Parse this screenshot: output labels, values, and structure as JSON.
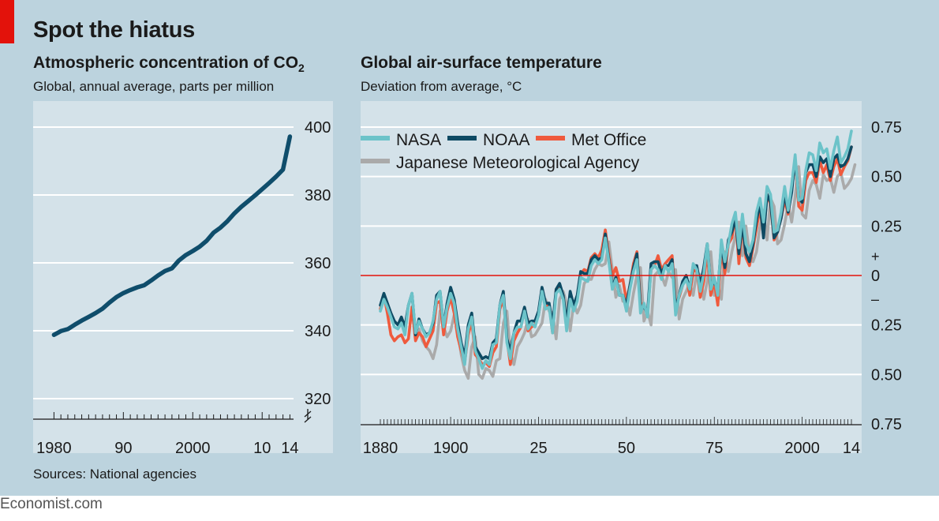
{
  "headline": "Spot the hiatus",
  "source": "Sources: National agencies",
  "brand": "Economist.com",
  "colors": {
    "accent_red": "#e3120b",
    "frame": "#bcd3de",
    "panel": "#d4e2e9",
    "co2_line": "#0f4d6b",
    "nasa": "#6cc3c9",
    "noaa": "#0d4a63",
    "met_office": "#ef5a3d",
    "jma": "#aaaaaa",
    "zero_line": "#e3120b"
  },
  "chart_data": [
    {
      "type": "line",
      "title": "Atmospheric concentration of CO",
      "title_subscript": "2",
      "subtitle": "Global, annual average, parts per million",
      "x_tick_labels": [
        "1980",
        "90",
        "2000",
        "10",
        "14"
      ],
      "x_tick_values": [
        1980,
        1990,
        2000,
        2010,
        2014
      ],
      "y_tick_labels": [
        "400",
        "380",
        "360",
        "340",
        "320"
      ],
      "y_tick_values": [
        400,
        380,
        360,
        340,
        320
      ],
      "xlim": [
        1977,
        2016
      ],
      "ylim": [
        312,
        402
      ],
      "axis_break": true,
      "grid": true,
      "series": [
        {
          "x": [
            1980,
            1981,
            1982,
            1983,
            1984,
            1985,
            1986,
            1987,
            1988,
            1989,
            1990,
            1991,
            1992,
            1993,
            1994,
            1995,
            1996,
            1997,
            1998,
            1999,
            2000,
            2001,
            2002,
            2003,
            2004,
            2005,
            2006,
            2007,
            2008,
            2009,
            2010,
            2011,
            2012,
            2013,
            2014
          ],
          "values": [
            338.8,
            339.9,
            340.5,
            341.8,
            343.0,
            344.1,
            345.2,
            346.5,
            348.3,
            349.9,
            351.1,
            352.0,
            352.8,
            353.4,
            354.8,
            356.3,
            357.6,
            358.4,
            360.7,
            362.3,
            363.5,
            364.8,
            366.5,
            368.9,
            370.4,
            372.3,
            374.6,
            376.5,
            378.2,
            379.9,
            381.7,
            383.5,
            385.4,
            387.5,
            397.2
          ]
        }
      ]
    },
    {
      "type": "line",
      "title": "Global air-surface temperature",
      "subtitle": "Deviation from average, °C",
      "x_tick_labels": [
        "1880",
        "1900",
        "25",
        "50",
        "75",
        "2000",
        "14"
      ],
      "x_tick_values": [
        1880,
        1900,
        1925,
        1950,
        1975,
        2000,
        2014
      ],
      "y_tick_labels": [
        "0.75",
        "0.50",
        "0.25",
        "0",
        "0.25",
        "0.50",
        "0.75"
      ],
      "y_tick_values": [
        0.75,
        0.5,
        0.25,
        0,
        -0.25,
        -0.5,
        -0.75
      ],
      "y_sign_labels": [
        "+",
        "–"
      ],
      "xlim": [
        1875,
        2018
      ],
      "ylim": [
        -0.75,
        0.75
      ],
      "grid": true,
      "legend": "top-left",
      "series": [
        {
          "name": "NASA",
          "x_start": 1880,
          "values": [
            -0.18,
            -0.12,
            -0.16,
            -0.21,
            -0.26,
            -0.27,
            -0.24,
            -0.3,
            -0.15,
            -0.09,
            -0.29,
            -0.23,
            -0.27,
            -0.31,
            -0.29,
            -0.23,
            -0.12,
            -0.08,
            -0.26,
            -0.16,
            -0.09,
            -0.14,
            -0.27,
            -0.36,
            -0.45,
            -0.27,
            -0.21,
            -0.38,
            -0.42,
            -0.47,
            -0.43,
            -0.45,
            -0.35,
            -0.34,
            -0.15,
            -0.1,
            -0.34,
            -0.42,
            -0.29,
            -0.26,
            -0.26,
            -0.18,
            -0.27,
            -0.24,
            -0.26,
            -0.2,
            -0.08,
            -0.17,
            -0.16,
            -0.29,
            -0.09,
            -0.07,
            -0.12,
            -0.28,
            -0.12,
            -0.18,
            -0.13,
            -0.01,
            -0.02,
            -0.03,
            0.05,
            0.08,
            0.06,
            0.08,
            0.19,
            0.07,
            -0.07,
            -0.02,
            -0.1,
            -0.1,
            -0.18,
            -0.07,
            0.02,
            0.08,
            -0.19,
            -0.14,
            -0.21,
            0.03,
            0.05,
            0.03,
            -0.02,
            0.05,
            0.02,
            0.06,
            -0.2,
            -0.1,
            -0.05,
            -0.02,
            -0.07,
            0.06,
            0.03,
            -0.08,
            0.01,
            0.16,
            -0.07,
            -0.01,
            -0.1,
            0.18,
            0.07,
            0.16,
            0.26,
            0.32,
            0.14,
            0.31,
            0.16,
            0.12,
            0.18,
            0.32,
            0.39,
            0.27,
            0.45,
            0.41,
            0.22,
            0.23,
            0.32,
            0.45,
            0.33,
            0.46,
            0.61,
            0.38,
            0.39,
            0.53,
            0.62,
            0.61,
            0.53,
            0.67,
            0.62,
            0.64,
            0.54,
            0.63,
            0.7,
            0.57,
            0.6,
            0.64,
            0.73
          ]
        },
        {
          "name": "NOAA",
          "x_start": 1880,
          "values": [
            -0.15,
            -0.09,
            -0.14,
            -0.19,
            -0.23,
            -0.25,
            -0.21,
            -0.26,
            -0.15,
            -0.09,
            -0.3,
            -0.22,
            -0.27,
            -0.3,
            -0.29,
            -0.24,
            -0.1,
            -0.08,
            -0.26,
            -0.14,
            -0.06,
            -0.12,
            -0.24,
            -0.34,
            -0.41,
            -0.25,
            -0.19,
            -0.36,
            -0.39,
            -0.42,
            -0.41,
            -0.42,
            -0.34,
            -0.32,
            -0.15,
            -0.08,
            -0.32,
            -0.38,
            -0.29,
            -0.23,
            -0.23,
            -0.16,
            -0.24,
            -0.23,
            -0.23,
            -0.18,
            -0.06,
            -0.14,
            -0.14,
            -0.25,
            -0.07,
            -0.04,
            -0.1,
            -0.24,
            -0.08,
            -0.15,
            -0.1,
            0.02,
            0.01,
            0.01,
            0.08,
            0.1,
            0.08,
            0.09,
            0.21,
            0.08,
            -0.06,
            -0.01,
            -0.1,
            -0.1,
            -0.15,
            -0.05,
            0.04,
            0.11,
            -0.16,
            -0.16,
            -0.19,
            0.06,
            0.07,
            0.07,
            0.01,
            0.05,
            0.05,
            0.08,
            -0.17,
            -0.1,
            -0.03,
            0.0,
            -0.07,
            0.05,
            0.05,
            -0.05,
            0.04,
            0.16,
            -0.06,
            -0.03,
            -0.08,
            0.16,
            0.04,
            0.18,
            0.22,
            0.29,
            0.11,
            0.26,
            0.11,
            0.07,
            0.16,
            0.28,
            0.37,
            0.19,
            0.41,
            0.37,
            0.19,
            0.22,
            0.29,
            0.41,
            0.32,
            0.42,
            0.59,
            0.39,
            0.37,
            0.52,
            0.56,
            0.56,
            0.5,
            0.6,
            0.57,
            0.59,
            0.5,
            0.59,
            0.61,
            0.55,
            0.56,
            0.59,
            0.65
          ]
        },
        {
          "name": "Met Office",
          "x_start": 1880,
          "values": [
            -0.17,
            -0.1,
            -0.19,
            -0.3,
            -0.33,
            -0.31,
            -0.3,
            -0.34,
            -0.32,
            -0.16,
            -0.33,
            -0.29,
            -0.31,
            -0.36,
            -0.32,
            -0.28,
            -0.14,
            -0.13,
            -0.3,
            -0.18,
            -0.11,
            -0.19,
            -0.31,
            -0.38,
            -0.44,
            -0.3,
            -0.23,
            -0.4,
            -0.42,
            -0.45,
            -0.44,
            -0.46,
            -0.39,
            -0.36,
            -0.17,
            -0.12,
            -0.32,
            -0.45,
            -0.33,
            -0.29,
            -0.26,
            -0.17,
            -0.28,
            -0.26,
            -0.25,
            -0.2,
            -0.08,
            -0.16,
            -0.15,
            -0.29,
            -0.07,
            -0.05,
            -0.11,
            -0.24,
            -0.12,
            -0.17,
            -0.11,
            0.01,
            0.03,
            0.02,
            0.09,
            0.11,
            0.09,
            0.13,
            0.23,
            0.1,
            0.0,
            0.04,
            -0.03,
            -0.02,
            -0.13,
            -0.05,
            0.06,
            0.12,
            -0.14,
            -0.15,
            -0.2,
            0.03,
            0.05,
            0.1,
            0.03,
            0.06,
            0.08,
            0.1,
            -0.15,
            -0.11,
            -0.05,
            0.0,
            -0.1,
            0.02,
            0.03,
            -0.11,
            -0.03,
            0.12,
            -0.1,
            -0.03,
            -0.15,
            0.13,
            0.01,
            0.16,
            0.19,
            0.3,
            0.06,
            0.26,
            0.09,
            0.05,
            0.14,
            0.24,
            0.34,
            0.2,
            0.41,
            0.36,
            0.18,
            0.22,
            0.29,
            0.38,
            0.31,
            0.44,
            0.59,
            0.35,
            0.33,
            0.48,
            0.52,
            0.52,
            0.47,
            0.58,
            0.52,
            0.56,
            0.48,
            0.55,
            0.59,
            0.51,
            0.55,
            0.58,
            0.65
          ]
        },
        {
          "name": "Japanese Meteorological Agency",
          "x_start": 1891,
          "values": [
            -0.27,
            -0.33,
            -0.36,
            -0.38,
            -0.42,
            -0.35,
            -0.18,
            -0.26,
            -0.31,
            -0.28,
            -0.2,
            -0.28,
            -0.4,
            -0.48,
            -0.52,
            -0.36,
            -0.31,
            -0.5,
            -0.52,
            -0.47,
            -0.48,
            -0.51,
            -0.43,
            -0.42,
            -0.24,
            -0.18,
            -0.39,
            -0.45,
            -0.36,
            -0.33,
            -0.29,
            -0.22,
            -0.31,
            -0.3,
            -0.27,
            -0.24,
            -0.12,
            -0.18,
            -0.19,
            -0.32,
            -0.12,
            -0.08,
            -0.14,
            -0.28,
            -0.14,
            -0.19,
            -0.15,
            -0.04,
            -0.02,
            -0.02,
            0.03,
            0.06,
            0.05,
            0.06,
            0.17,
            0.03,
            -0.11,
            -0.05,
            -0.13,
            -0.13,
            -0.2,
            -0.09,
            0.0,
            0.04,
            -0.23,
            -0.18,
            -0.25,
            0.0,
            0.02,
            0.0,
            -0.05,
            0.02,
            -0.01,
            0.03,
            -0.22,
            -0.12,
            -0.08,
            -0.04,
            -0.1,
            0.02,
            0.0,
            -0.12,
            -0.03,
            0.12,
            -0.1,
            -0.05,
            -0.12,
            0.12,
            0.02,
            0.12,
            0.2,
            0.27,
            0.1,
            0.25,
            0.11,
            0.07,
            0.12,
            0.25,
            0.33,
            0.18,
            0.39,
            0.35,
            0.16,
            0.18,
            0.26,
            0.36,
            0.27,
            0.4,
            0.55,
            0.31,
            0.29,
            0.43,
            0.48,
            0.46,
            0.39,
            0.51,
            0.48,
            0.49,
            0.42,
            0.5,
            0.52,
            0.44,
            0.46,
            0.49,
            0.56
          ]
        }
      ]
    }
  ]
}
